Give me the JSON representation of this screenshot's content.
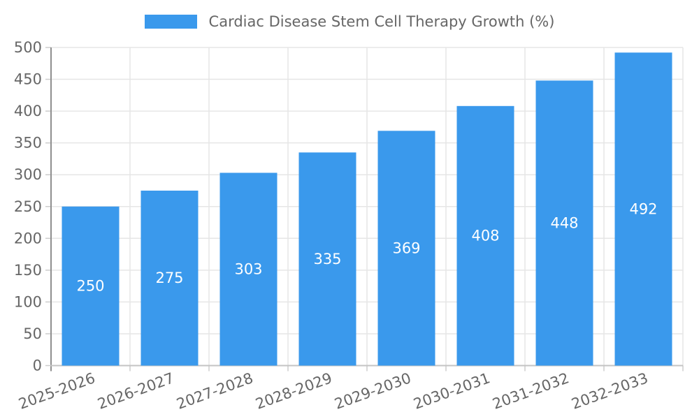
{
  "legend": {
    "label": "Cardiac Disease Stem Cell Therapy Growth (%)"
  },
  "chart_data": {
    "type": "bar",
    "title": "Cardiac Disease Stem Cell Therapy Growth (%)",
    "categories": [
      "2025-2026",
      "2026-2027",
      "2027-2028",
      "2028-2029",
      "2029-2030",
      "2030-2031",
      "2031-2032",
      "2032-2033"
    ],
    "values": [
      250,
      275,
      303,
      335,
      369,
      408,
      448,
      492
    ],
    "xlabel": "",
    "ylabel": "",
    "ylim": [
      0,
      500
    ],
    "ytick_step": 50,
    "yticks": [
      0,
      50,
      100,
      150,
      200,
      250,
      300,
      350,
      400,
      450,
      500
    ],
    "grid": true,
    "legend_position": "top",
    "x_label_rotation_deg": -20,
    "colors": {
      "bar": "#3a99ec",
      "bar_label": "#ffffff",
      "axis_text": "#666666",
      "grid": "#e6e6e6",
      "axis_line_left": "#8f8f8f",
      "axis_line_bottom": "#c3c3c3",
      "tick": "#cccccc"
    }
  }
}
